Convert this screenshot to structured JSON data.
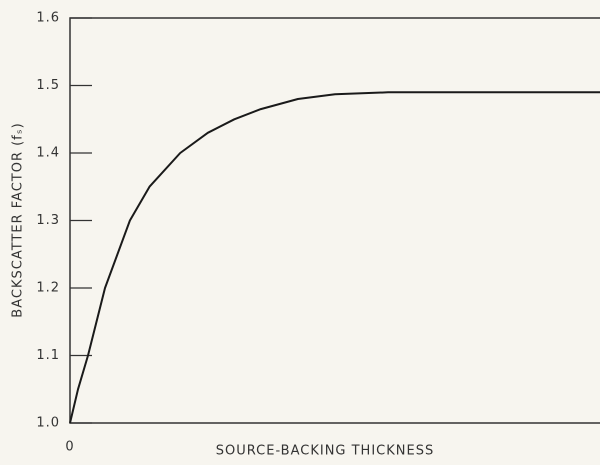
{
  "chart_data": {
    "type": "line",
    "xlabel": "SOURCE-BACKING THICKNESS",
    "ylabel": "BACKSCATTER FACTOR (fₛ)",
    "x": [
      0,
      0.15,
      0.34,
      0.66,
      1.13,
      1.5,
      2.08,
      2.6,
      3.1,
      3.6,
      4.3,
      5,
      6,
      8,
      10
    ],
    "values": [
      1.0,
      1.05,
      1.1,
      1.2,
      1.3,
      1.35,
      1.4,
      1.43,
      1.45,
      1.465,
      1.48,
      1.487,
      1.49,
      1.49,
      1.49
    ],
    "color": "#1a1a1a",
    "xlim": [
      0,
      10
    ],
    "xticks": [
      0
    ],
    "ylim": [
      1.0,
      1.6
    ],
    "yticks": [
      {
        "value": 1.0,
        "label": "1.0"
      },
      1.1,
      1.2,
      1.3,
      1.4,
      1.5,
      1.6
    ]
  }
}
